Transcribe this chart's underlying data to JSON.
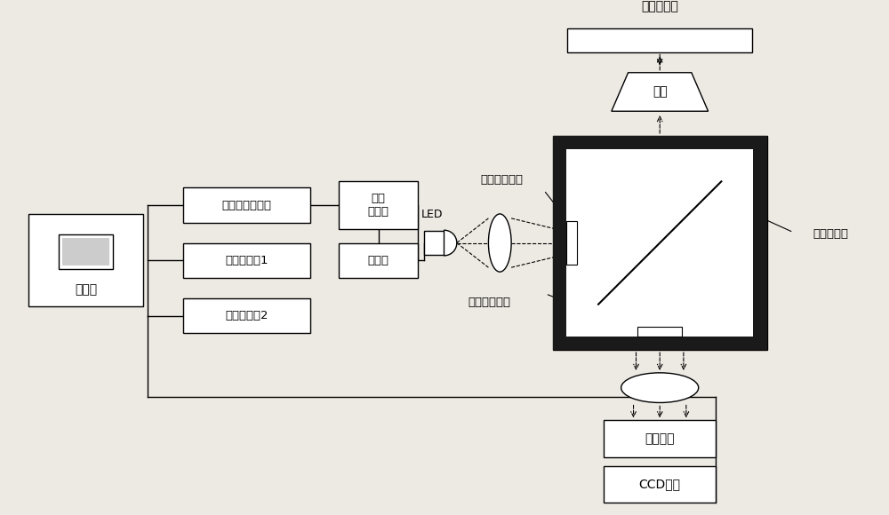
{
  "bg_color": "#ede9e3",
  "box_color": "white",
  "box_edge": "black",
  "line_color": "black",
  "dark_color": "#1a1a1a",
  "font_size": 10,
  "labels": {
    "computer": "计算机",
    "signal1": "信号发生器1",
    "signal2": "信号发生器2",
    "rf_amp": "射频功率放大器",
    "dc_bias": "直流\n偏置器",
    "current": "电流源",
    "led": "LED",
    "obj": "物镜",
    "sample": "人民币样品",
    "excite_filter": "激发光滤波片",
    "emit_filter": "发射光滤波片",
    "beam_splitter": "分光滤波片",
    "intensifier": "像增强器",
    "ccd": "CCD相机"
  }
}
